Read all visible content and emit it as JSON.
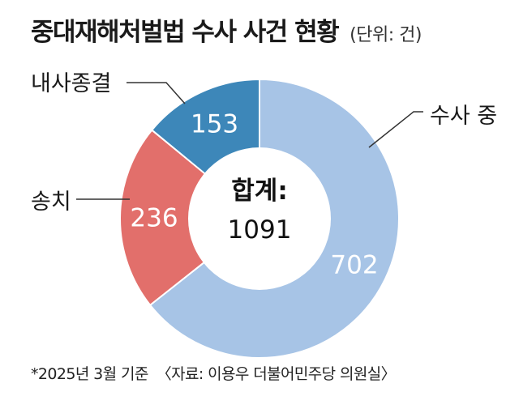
{
  "header": {
    "title": "중대재해처벌법 수사 사건 현황",
    "unit": "(단위: 건)"
  },
  "chart_data": {
    "type": "pie",
    "title": "중대재해처벌법 수사 사건 현황",
    "unit": "(단위: 건)",
    "categories": [
      "수사 중",
      "송치",
      "내사종결"
    ],
    "values": [
      702,
      236,
      153
    ],
    "colors": [
      "#a7c4e6",
      "#e26f6b",
      "#3d87b9"
    ],
    "center_label": "합계:",
    "center_value": "1091"
  },
  "footer": {
    "note": "*2025년 3월 기준",
    "source": "〈자료: 이용우 더불어민주당 의원실〉"
  }
}
